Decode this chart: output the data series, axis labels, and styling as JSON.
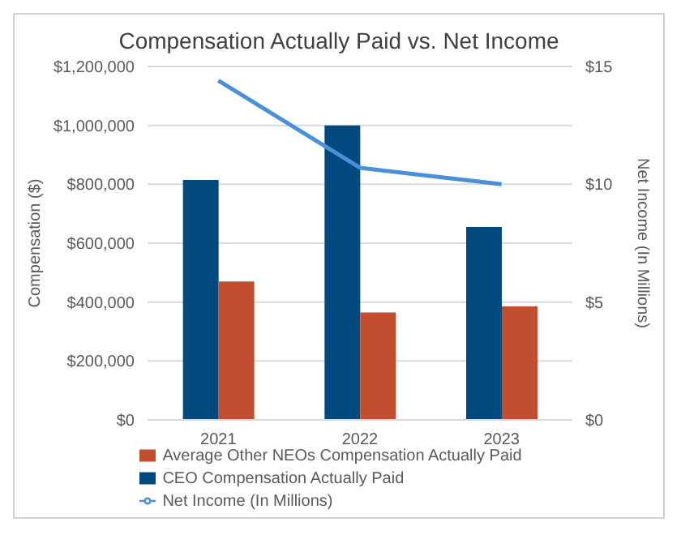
{
  "chart_data": {
    "type": "bar",
    "title": "Compensation Actually Paid vs. Net Income",
    "ylabel": "Compensation ($)",
    "y2label": "Net Income (In Millions)",
    "categories": [
      "2021",
      "2022",
      "2023"
    ],
    "series": [
      {
        "name": "CEO Compensation Actually Paid",
        "color": "#004a7f",
        "values": [
          815000,
          1000000,
          655000
        ]
      },
      {
        "name": "Average Other NEOs Compensation Actually Paid",
        "color": "#c14f2f",
        "values": [
          470000,
          365000,
          385000
        ]
      },
      {
        "name": "Net Income (In Millions)",
        "type": "line",
        "axis": "y2",
        "color": "#4a90d9",
        "values": [
          14.4,
          10.7,
          10.0
        ]
      }
    ],
    "ylim": [
      0,
      1200000
    ],
    "yticks": [
      {
        "value": 0,
        "label": "$0"
      },
      {
        "value": 200000,
        "label": "$200,000"
      },
      {
        "value": 400000,
        "label": "$400,000"
      },
      {
        "value": 600000,
        "label": "$600,000"
      },
      {
        "value": 800000,
        "label": "$800,000"
      },
      {
        "value": 1000000,
        "label": "$1,000,000"
      },
      {
        "value": 1200000,
        "label": "$1,200,000"
      }
    ],
    "y2lim": [
      0,
      15
    ],
    "y2ticks": [
      {
        "value": 0,
        "label": "$0"
      },
      {
        "value": 5,
        "label": "$5"
      },
      {
        "value": 10,
        "label": "$10"
      },
      {
        "value": 15,
        "label": "$15"
      }
    ],
    "grid": "y",
    "legend": "bottom",
    "marker": "none"
  }
}
